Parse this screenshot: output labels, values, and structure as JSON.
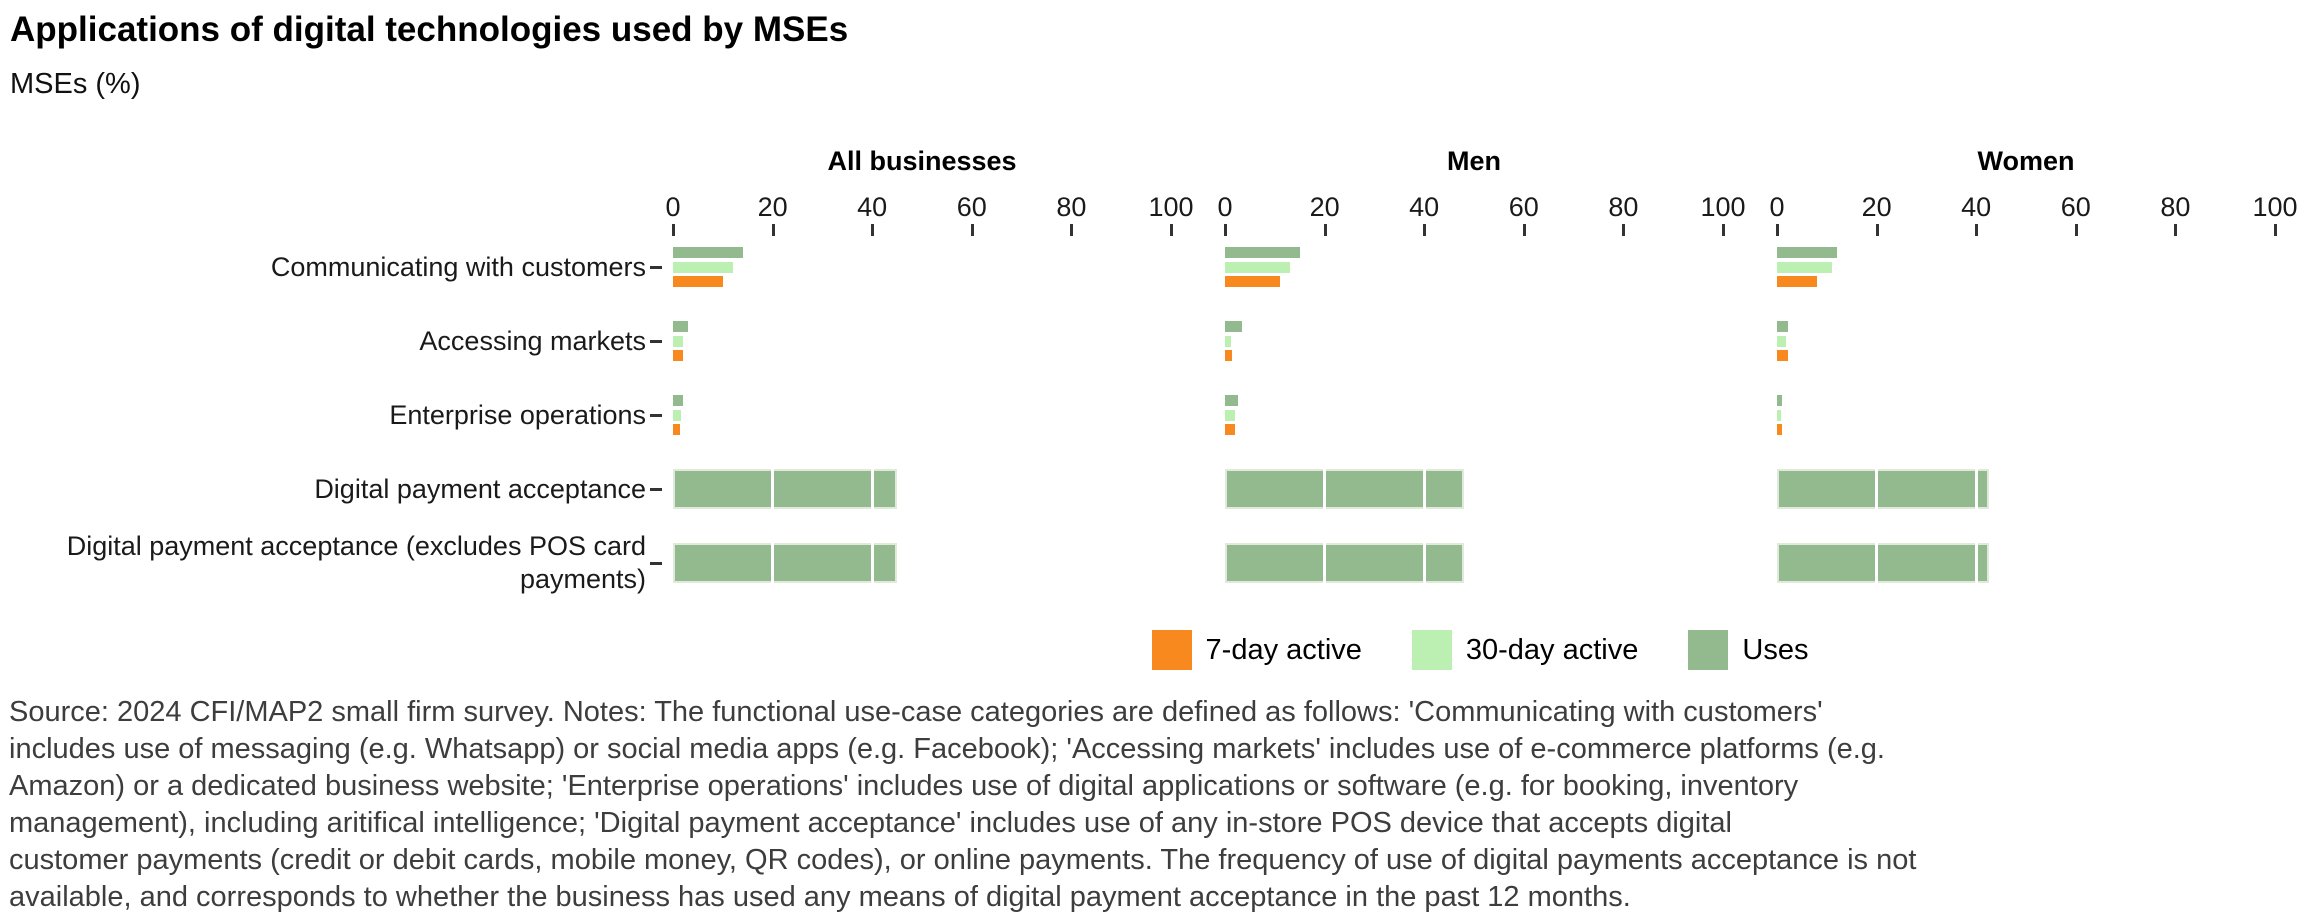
{
  "chart_data": {
    "type": "bar",
    "orientation": "horizontal",
    "title": "Applications of digital technologies used by MSEs",
    "subtitle": "MSEs (%)",
    "xlim": [
      0,
      100
    ],
    "x_ticks": [
      0,
      20,
      40,
      60,
      80,
      100
    ],
    "grid": "white major vertical gridlines, visible only over bars",
    "legend_position": "bottom-center",
    "legend": [
      {
        "name": "7-day active",
        "color": "#F8891E"
      },
      {
        "name": "30-day active",
        "color": "#BCEFB2"
      },
      {
        "name": "Uses",
        "color": "#92BA8E"
      }
    ],
    "categories": [
      "Communicating with customers",
      "Accessing markets",
      "Enterprise operations",
      "Digital payment acceptance",
      "Digital payment acceptance (excludes POS card payments)"
    ],
    "panels": [
      {
        "title": "All businesses",
        "series": [
          {
            "name": "Uses",
            "values": [
              14,
              3,
              2,
              45,
              45
            ]
          },
          {
            "name": "30-day active",
            "values": [
              12,
              2,
              1.7,
              null,
              null
            ]
          },
          {
            "name": "7-day active",
            "values": [
              10,
              2,
              1.5,
              null,
              null
            ]
          }
        ]
      },
      {
        "title": "Men",
        "series": [
          {
            "name": "Uses",
            "values": [
              15,
              3.5,
              2.7,
              48,
              48
            ]
          },
          {
            "name": "30-day active",
            "values": [
              13,
              1.3,
              2,
              null,
              null
            ]
          },
          {
            "name": "7-day active",
            "values": [
              11,
              1.5,
              2,
              null,
              null
            ]
          }
        ]
      },
      {
        "title": "Women",
        "series": [
          {
            "name": "Uses",
            "values": [
              12,
              2.2,
              1,
              42.5,
              42.5
            ]
          },
          {
            "name": "30-day active",
            "values": [
              11,
              1.9,
              0.8,
              null,
              null
            ]
          },
          {
            "name": "7-day active",
            "values": [
              8,
              2.2,
              1,
              null,
              null
            ]
          }
        ]
      }
    ]
  },
  "caption": {
    "lines": [
      "Source: 2024 CFI/MAP2 small firm survey. Notes: The functional use-case categories are defined as follows: 'Communicating with customers'",
      "includes use of messaging (e.g. Whatsapp) or social media apps (e.g. Facebook); 'Accessing markets' includes use of e-commerce platforms (e.g.",
      "Amazon) or a dedicated business website; 'Enterprise operations' includes use of digital applications or software (e.g. for booking, inventory",
      "management), including aritifical intelligence; 'Digital payment acceptance' includes use of any in-store POS device that accepts digital",
      "customer payments (credit or debit cards, mobile money, QR codes), or online payments. The frequency of use of digital payments acceptance is not",
      "available, and corresponds to whether the business has used any means of digital payment acceptance in the past 12 months."
    ]
  }
}
